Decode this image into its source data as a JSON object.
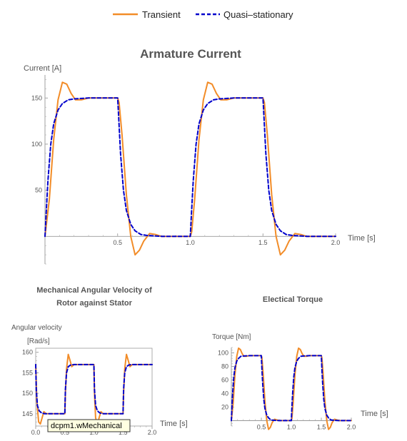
{
  "legend": {
    "items": [
      {
        "label": "Transient",
        "color": "#F28C28",
        "style": "solid"
      },
      {
        "label": "Quasi–stationary",
        "color": "#0000CC",
        "style": "dashed"
      }
    ]
  },
  "tooltip": {
    "text": "dcpm1.wMechanical"
  },
  "chart_data": [
    {
      "type": "line",
      "title": "Armature Current",
      "ylabel": "Current [A]",
      "xlabel": "Time [s]",
      "xlim": [
        0,
        2.0
      ],
      "ylim": [
        -30,
        175
      ],
      "xticks": [
        0.5,
        1.0,
        1.5,
        2.0
      ],
      "xtick_labels": [
        "0.5",
        "1.0",
        "1.5",
        "2.0"
      ],
      "yticks": [
        50,
        100,
        150
      ],
      "ytick_labels": [
        "50",
        "100",
        "150"
      ],
      "series": [
        {
          "name": "Transient",
          "color": "#F28C28",
          "dash": "solid",
          "x": [
            0,
            0.03,
            0.06,
            0.09,
            0.12,
            0.15,
            0.18,
            0.21,
            0.25,
            0.3,
            0.4,
            0.5,
            0.51,
            0.53,
            0.56,
            0.59,
            0.62,
            0.65,
            0.68,
            0.72,
            0.76,
            0.8,
            0.9,
            1.0,
            1.01,
            1.03,
            1.06,
            1.09,
            1.12,
            1.15,
            1.18,
            1.21,
            1.25,
            1.3,
            1.4,
            1.5,
            1.51,
            1.53,
            1.56,
            1.59,
            1.62,
            1.65,
            1.68,
            1.72,
            1.76,
            1.8,
            1.9,
            2.0
          ],
          "y": [
            0,
            40,
            105,
            148,
            167,
            165,
            155,
            148,
            148,
            150,
            150,
            150,
            145,
            110,
            45,
            0,
            -20,
            -15,
            -5,
            3,
            2,
            0,
            0,
            0,
            5,
            40,
            105,
            148,
            167,
            165,
            155,
            148,
            148,
            150,
            150,
            150,
            145,
            110,
            45,
            0,
            -20,
            -15,
            -5,
            3,
            2,
            0,
            0,
            0
          ]
        },
        {
          "name": "Quasi–stationary",
          "color": "#0000CC",
          "dash": "dashed",
          "x": [
            0,
            0.01,
            0.02,
            0.04,
            0.06,
            0.09,
            0.12,
            0.16,
            0.2,
            0.3,
            0.4,
            0.5,
            0.51,
            0.52,
            0.54,
            0.56,
            0.59,
            0.62,
            0.66,
            0.7,
            0.8,
            0.9,
            1.0,
            1.01,
            1.02,
            1.04,
            1.06,
            1.09,
            1.12,
            1.16,
            1.2,
            1.3,
            1.4,
            1.5,
            1.51,
            1.52,
            1.54,
            1.56,
            1.59,
            1.62,
            1.66,
            1.7,
            1.8,
            1.9,
            2.0
          ],
          "y": [
            0,
            30,
            60,
            100,
            122,
            137,
            144,
            148,
            149,
            150,
            150,
            150,
            120,
            90,
            50,
            28,
            13,
            6,
            2,
            1,
            0,
            0,
            0,
            30,
            60,
            100,
            122,
            137,
            144,
            148,
            149,
            150,
            150,
            150,
            120,
            90,
            50,
            28,
            13,
            6,
            2,
            1,
            0,
            0,
            0
          ]
        }
      ]
    },
    {
      "type": "line",
      "title": "Mechanical Angular Velocity of Rotor against Stator",
      "title_lines": [
        "Mechanical Angular Velocity of",
        "Rotor against Stator"
      ],
      "ylabel_lines": [
        "Angular velocity",
        "[Rad/s]"
      ],
      "xlabel": "Time [s]",
      "xlim": [
        0,
        2.0
      ],
      "ylim": [
        142,
        161
      ],
      "xticks": [
        0.0,
        0.5,
        1.0,
        1.5,
        2.0
      ],
      "xtick_labels": [
        "0.0",
        "0.5",
        "1.0",
        "1.5",
        "2.0"
      ],
      "yticks": [
        145,
        150,
        155,
        160
      ],
      "ytick_labels": [
        "145",
        "150",
        "155",
        "160"
      ],
      "series": [
        {
          "name": "Transient",
          "color": "#F28C28",
          "dash": "solid",
          "x": [
            0,
            0.02,
            0.05,
            0.08,
            0.11,
            0.14,
            0.18,
            0.25,
            0.4,
            0.5,
            0.51,
            0.53,
            0.56,
            0.59,
            0.62,
            0.66,
            0.72,
            0.85,
            1.0,
            1.01,
            1.03,
            1.06,
            1.09,
            1.12,
            1.16,
            1.22,
            1.35,
            1.5,
            1.51,
            1.53,
            1.56,
            1.59,
            1.62,
            1.66,
            1.72,
            1.85,
            2.0
          ],
          "y": [
            157,
            148,
            143,
            142.5,
            144,
            145.5,
            145,
            145,
            145,
            145,
            150,
            156,
            159.5,
            158,
            156.5,
            157,
            157,
            157,
            157,
            150,
            144,
            142.5,
            144,
            145.5,
            145,
            145,
            145,
            145,
            150,
            156,
            159.5,
            158,
            156.5,
            157,
            157,
            157,
            157
          ]
        },
        {
          "name": "Quasi–stationary",
          "color": "#0000CC",
          "dash": "dashed",
          "x": [
            0,
            0.01,
            0.03,
            0.06,
            0.1,
            0.15,
            0.25,
            0.4,
            0.5,
            0.51,
            0.53,
            0.56,
            0.6,
            0.65,
            0.75,
            0.9,
            1.0,
            1.01,
            1.03,
            1.06,
            1.1,
            1.15,
            1.25,
            1.4,
            1.5,
            1.51,
            1.53,
            1.56,
            1.6,
            1.65,
            1.75,
            1.9,
            2.0
          ],
          "y": [
            157,
            151,
            147,
            145.7,
            145.2,
            145,
            145,
            145,
            145,
            151,
            155,
            156.5,
            156.9,
            157,
            157,
            157,
            157,
            151,
            147,
            145.7,
            145.2,
            145,
            145,
            145,
            145,
            151,
            155,
            156.5,
            156.9,
            157,
            157,
            157,
            157
          ]
        }
      ]
    },
    {
      "type": "line",
      "title": "Electical Torque",
      "ylabel": "Torque [Nm]",
      "xlabel": "Time [s]",
      "xlim": [
        0,
        2.0
      ],
      "ylim": [
        -8,
        108
      ],
      "xticks": [
        0.5,
        1.0,
        1.5,
        2.0
      ],
      "xtick_labels": [
        "0.5",
        "1.0",
        "1.5",
        "2.0"
      ],
      "yticks": [
        20,
        40,
        60,
        80,
        100
      ],
      "ytick_labels": [
        "20",
        "40",
        "60",
        "80",
        "100"
      ],
      "series": [
        {
          "name": "Transient",
          "color": "#F28C28",
          "dash": "solid",
          "x": [
            0,
            0.03,
            0.06,
            0.09,
            0.12,
            0.15,
            0.18,
            0.21,
            0.25,
            0.3,
            0.4,
            0.5,
            0.51,
            0.53,
            0.56,
            0.59,
            0.62,
            0.65,
            0.68,
            0.72,
            0.76,
            0.8,
            0.9,
            1.0,
            1.01,
            1.03,
            1.06,
            1.09,
            1.12,
            1.15,
            1.18,
            1.21,
            1.25,
            1.3,
            1.4,
            1.5,
            1.51,
            1.53,
            1.56,
            1.59,
            1.62,
            1.65,
            1.68,
            1.72,
            1.76,
            1.8,
            1.9,
            2.0
          ],
          "y": [
            0,
            25,
            67,
            95,
            107,
            105,
            99,
            95,
            95,
            96,
            96,
            96,
            93,
            70,
            29,
            0,
            -13,
            -10,
            -3,
            2,
            1,
            0,
            0,
            0,
            3,
            25,
            67,
            95,
            107,
            105,
            99,
            95,
            95,
            96,
            96,
            96,
            93,
            70,
            29,
            0,
            -13,
            -10,
            -3,
            2,
            1,
            0,
            0,
            0
          ]
        },
        {
          "name": "Quasi–stationary",
          "color": "#0000CC",
          "dash": "dashed",
          "x": [
            0,
            0.01,
            0.02,
            0.04,
            0.06,
            0.09,
            0.12,
            0.16,
            0.2,
            0.3,
            0.4,
            0.5,
            0.51,
            0.52,
            0.54,
            0.56,
            0.59,
            0.62,
            0.66,
            0.7,
            0.8,
            0.9,
            1.0,
            1.01,
            1.02,
            1.04,
            1.06,
            1.09,
            1.12,
            1.16,
            1.2,
            1.3,
            1.4,
            1.5,
            1.51,
            1.52,
            1.54,
            1.56,
            1.59,
            1.62,
            1.66,
            1.7,
            1.8,
            1.9,
            2.0
          ],
          "y": [
            0,
            19,
            38,
            64,
            78,
            88,
            92,
            95,
            95.5,
            96,
            96,
            96,
            77,
            58,
            32,
            18,
            8,
            4,
            1,
            0.5,
            0,
            0,
            0,
            19,
            38,
            64,
            78,
            88,
            92,
            95,
            95.5,
            96,
            96,
            96,
            77,
            58,
            32,
            18,
            8,
            4,
            1,
            0.5,
            0,
            0,
            0
          ]
        }
      ]
    }
  ]
}
